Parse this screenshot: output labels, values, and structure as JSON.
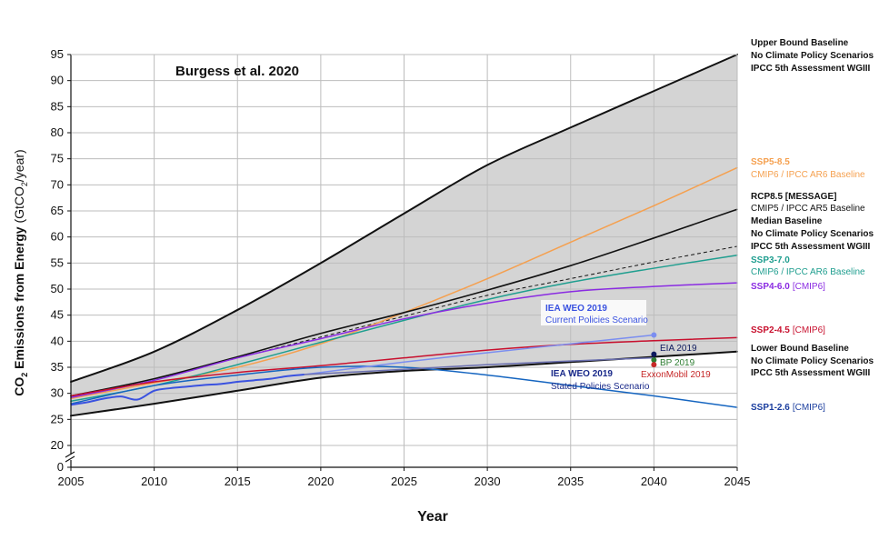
{
  "chart_data": {
    "type": "line",
    "title": "Burgess et al. 2020",
    "xlabel": "Year",
    "ylabel_main": "CO",
    "ylabel_sub2": "2",
    "ylabel_rest": " Emissions from Energy ",
    "ylabel_unit_a": "(GtCO",
    "ylabel_unit_sub": "2",
    "ylabel_unit_b": "/year)",
    "xlim": [
      2005,
      2045
    ],
    "ylim_display": [
      0,
      95
    ],
    "axis_break": {
      "from": 0,
      "to": 20
    },
    "x_ticks": [
      "2005",
      "2010",
      "2015",
      "2020",
      "2025",
      "2030",
      "2035",
      "2040",
      "2045"
    ],
    "y_ticks": [
      "0",
      "20",
      "25",
      "30",
      "35",
      "40",
      "45",
      "50",
      "55",
      "60",
      "65",
      "70",
      "75",
      "80",
      "85",
      "90",
      "95"
    ],
    "grid": true,
    "band": {
      "upper": [
        [
          2005,
          32.2
        ],
        [
          2010,
          38
        ],
        [
          2015,
          46
        ],
        [
          2020,
          55
        ],
        [
          2025,
          64.5
        ],
        [
          2030,
          73.8
        ],
        [
          2035,
          81
        ],
        [
          2040,
          88
        ],
        [
          2045,
          95
        ]
      ],
      "lower": [
        [
          2005,
          25.7
        ],
        [
          2010,
          28
        ],
        [
          2015,
          30.5
        ],
        [
          2020,
          33
        ],
        [
          2025,
          34.3
        ],
        [
          2030,
          35
        ],
        [
          2035,
          36
        ],
        [
          2040,
          37
        ],
        [
          2045,
          38
        ]
      ],
      "color": "#d4d4d4"
    },
    "series": [
      {
        "name_lines": [
          "Upper Bound Baseline",
          "No Climate Policy Scenarios",
          "IPCC 5th Assessment WGIII"
        ],
        "color": "#111111",
        "width": 2,
        "points": [
          [
            2005,
            32.2
          ],
          [
            2010,
            38
          ],
          [
            2015,
            46
          ],
          [
            2020,
            55
          ],
          [
            2025,
            64.5
          ],
          [
            2030,
            73.8
          ],
          [
            2035,
            81
          ],
          [
            2040,
            88
          ],
          [
            2045,
            95
          ]
        ]
      },
      {
        "name_lines": [
          "SSP5-8.5",
          "CMIP6 / IPCC AR6 Baseline"
        ],
        "color": "#f5a04f",
        "width": 1.5,
        "points": [
          [
            2005,
            29
          ],
          [
            2010,
            32
          ],
          [
            2015,
            35
          ],
          [
            2020,
            39.5
          ],
          [
            2025,
            45.5
          ],
          [
            2030,
            52
          ],
          [
            2035,
            59
          ],
          [
            2040,
            66
          ],
          [
            2045,
            73.3
          ]
        ]
      },
      {
        "name_lines": [
          "RCP8.5 [MESSAGE]",
          "CMIP5 / IPCC AR5 Baseline",
          "Median Baseline",
          "No Climate Policy Scenarios",
          "IPCC 5th Assessment WGIII"
        ],
        "color": "#111111",
        "width": 1.6,
        "points": [
          [
            2005,
            29.5
          ],
          [
            2010,
            32.8
          ],
          [
            2015,
            37
          ],
          [
            2020,
            41.5
          ],
          [
            2025,
            45.5
          ],
          [
            2030,
            49.8
          ],
          [
            2035,
            54.5
          ],
          [
            2040,
            59.8
          ],
          [
            2045,
            65.3
          ]
        ]
      },
      {
        "name_lines": [
          "SSP3-7.0",
          "CMIP6 / IPCC AR6 Baseline"
        ],
        "color": "#1f9e8f",
        "width": 1.5,
        "points": [
          [
            2005,
            28.5
          ],
          [
            2010,
            31.5
          ],
          [
            2015,
            35.5
          ],
          [
            2020,
            39.8
          ],
          [
            2025,
            44
          ],
          [
            2030,
            48
          ],
          [
            2035,
            51.3
          ],
          [
            2040,
            54
          ],
          [
            2045,
            56.5
          ]
        ]
      },
      {
        "name_lines": [
          "SSP4-6.0",
          "[CMIP6]"
        ],
        "color": "#8a2be2",
        "width": 1.5,
        "points": [
          [
            2005,
            29.2
          ],
          [
            2010,
            32.5
          ],
          [
            2015,
            36.8
          ],
          [
            2020,
            40.5
          ],
          [
            2025,
            44.3
          ],
          [
            2030,
            47.3
          ],
          [
            2035,
            49.5
          ],
          [
            2040,
            50.5
          ],
          [
            2045,
            51.2
          ]
        ]
      },
      {
        "name_lines": [
          "SSP2-4.5",
          "[CMIP6]"
        ],
        "color": "#c8102e",
        "width": 1.5,
        "points": [
          [
            2005,
            29.5
          ],
          [
            2010,
            32.2
          ],
          [
            2015,
            34
          ],
          [
            2020,
            35.3
          ],
          [
            2025,
            36.8
          ],
          [
            2030,
            38.3
          ],
          [
            2035,
            39.4
          ],
          [
            2040,
            40.1
          ],
          [
            2045,
            40.7
          ]
        ]
      },
      {
        "name_lines": [
          "Lower Bound Baseline",
          "No Climate Policy Scenarios",
          "IPCC 5th Assessment WGIII"
        ],
        "color": "#111111",
        "width": 2,
        "points": [
          [
            2005,
            25.7
          ],
          [
            2010,
            28
          ],
          [
            2015,
            30.5
          ],
          [
            2020,
            33
          ],
          [
            2025,
            34.3
          ],
          [
            2030,
            35
          ],
          [
            2035,
            36
          ],
          [
            2040,
            37
          ],
          [
            2045,
            38
          ]
        ]
      },
      {
        "name_lines": [
          "SSP1-2.6",
          "[CMIP6]"
        ],
        "color": "#1565c0",
        "width": 1.5,
        "points": [
          [
            2005,
            28
          ],
          [
            2010,
            31.5
          ],
          [
            2015,
            33.5
          ],
          [
            2020,
            35
          ],
          [
            2025,
            35
          ],
          [
            2030,
            33.5
          ],
          [
            2035,
            31.5
          ],
          [
            2040,
            29.5
          ],
          [
            2045,
            27.3
          ]
        ]
      }
    ],
    "dashed_series": {
      "color": "#111111",
      "points": [
        [
          2005,
          29.2
        ],
        [
          2010,
          32.8
        ],
        [
          2015,
          36.8
        ],
        [
          2020,
          40.8
        ],
        [
          2025,
          44.8
        ],
        [
          2030,
          48.8
        ],
        [
          2035,
          52
        ],
        [
          2040,
          55.2
        ],
        [
          2045,
          58.2
        ]
      ]
    },
    "historical": {
      "color": "#3a52e0",
      "points": [
        [
          2005,
          27.8
        ],
        [
          2006,
          28.3
        ],
        [
          2007,
          29
        ],
        [
          2008,
          29.4
        ],
        [
          2009,
          28.8
        ],
        [
          2010,
          30.5
        ],
        [
          2011,
          31
        ],
        [
          2012,
          31.3
        ],
        [
          2013,
          31.6
        ],
        [
          2014,
          31.8
        ],
        [
          2015,
          32.2
        ],
        [
          2016,
          32.5
        ],
        [
          2017,
          32.8
        ],
        [
          2018,
          33.3
        ],
        [
          2019,
          33.6
        ]
      ]
    },
    "scenario_lines": [
      {
        "color": "#7b8ef0",
        "points": [
          [
            2019,
            33.6
          ],
          [
            2025,
            36
          ],
          [
            2030,
            37.8
          ],
          [
            2035,
            39.5
          ],
          [
            2040,
            41.2
          ]
        ],
        "end_marker": true
      },
      {
        "color": "#6a6fb0",
        "points": [
          [
            2019,
            33.6
          ],
          [
            2025,
            34.6
          ],
          [
            2030,
            35.5
          ],
          [
            2035,
            36.2
          ],
          [
            2040,
            36.8
          ]
        ],
        "end_marker": false
      }
    ],
    "points": [
      {
        "label": "EIA 2019",
        "x": 2040,
        "y": 37.5,
        "color": "#0d1a5e"
      },
      {
        "label": "BP 2019",
        "x": 2040,
        "y": 36.4,
        "color": "#2e7d32"
      },
      {
        "label": "ExxonMobil 2019",
        "x": 2040,
        "y": 35.5,
        "color": "#c62828"
      }
    ],
    "annotations": [
      {
        "lines": [
          "IEA WEO 2019",
          "Current Policies Scenario"
        ],
        "color": "#3a52e0"
      },
      {
        "lines": [
          "IEA WEO 2019",
          "Stated Policies Scenario"
        ],
        "color": "#1a2a8a"
      }
    ]
  }
}
